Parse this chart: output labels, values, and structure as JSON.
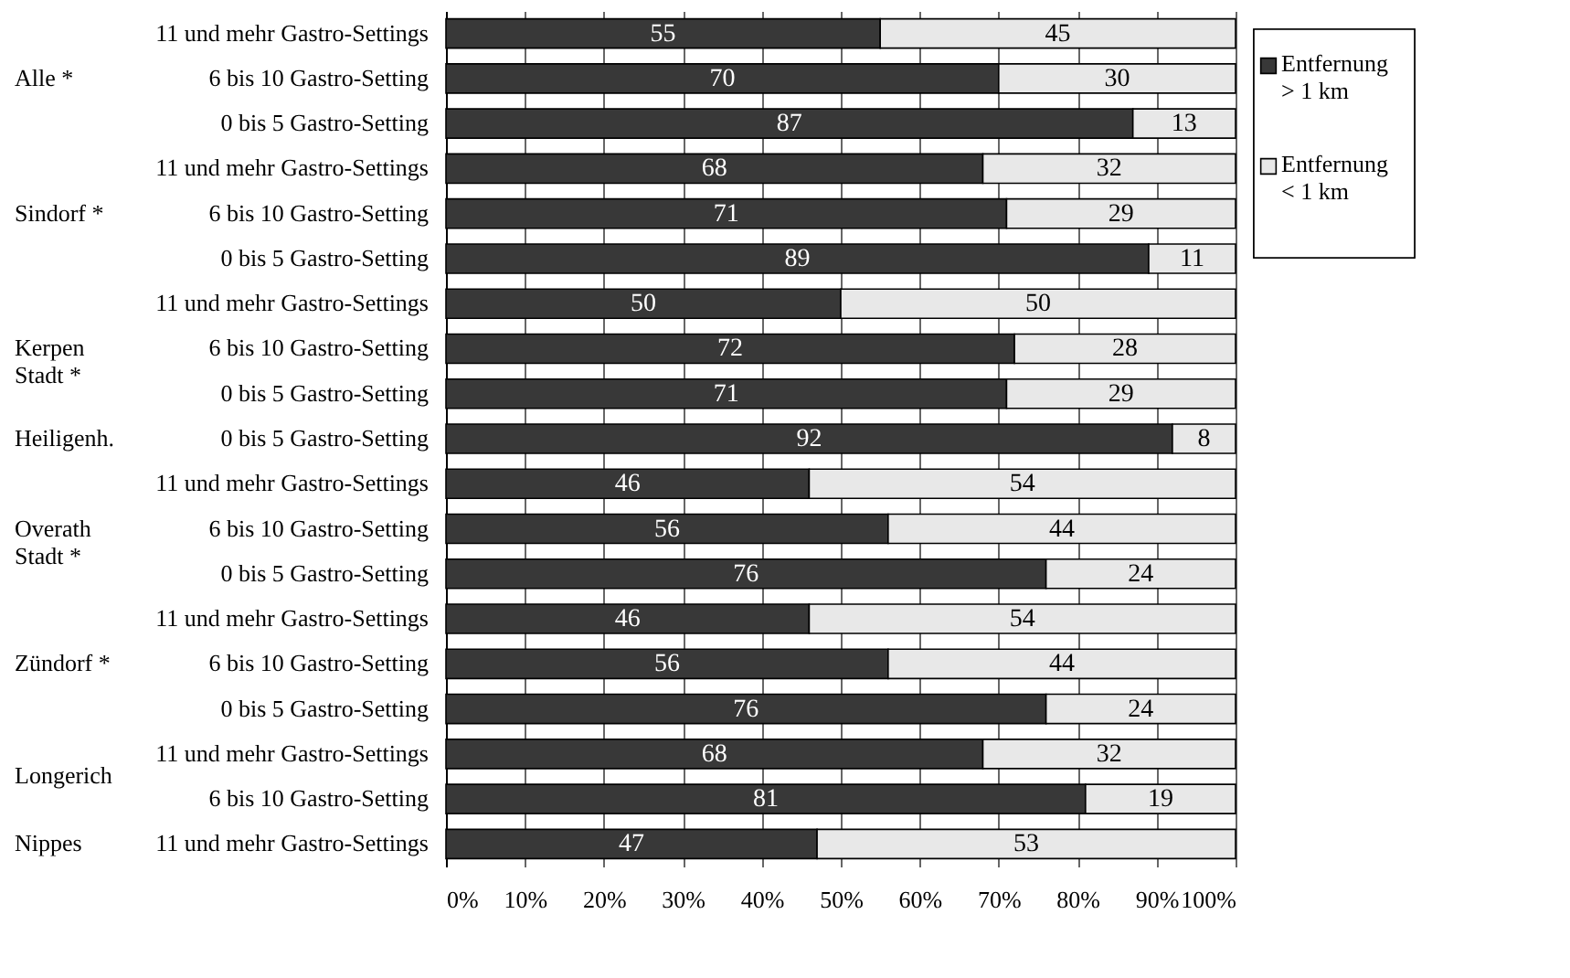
{
  "chart_data": {
    "type": "bar",
    "orientation": "horizontal",
    "stacked": true,
    "data_labels": true,
    "grid": "x",
    "legend": "right",
    "categories": [
      "11 und mehr Gastro-Settings",
      "6 bis 10 Gastro-Setting",
      "0 bis 5 Gastro-Setting",
      "11 und mehr Gastro-Settings",
      "6 bis 10 Gastro-Setting",
      "0 bis 5 Gastro-Setting",
      "11 und mehr Gastro-Settings",
      "6 bis 10 Gastro-Setting",
      "0 bis 5 Gastro-Setting",
      "0 bis 5 Gastro-Setting",
      "11 und mehr Gastro-Settings",
      "6 bis 10 Gastro-Setting",
      "0 bis 5 Gastro-Setting",
      "11 und mehr Gastro-Settings",
      "6 bis 10 Gastro-Setting",
      "0 bis 5 Gastro-Setting",
      "11 und mehr Gastro-Settings",
      "6 bis 10 Gastro-Setting",
      "11 und mehr Gastro-Settings"
    ],
    "series": [
      {
        "name": "Entfernung\n> 1 km",
        "color": "#383838",
        "values": [
          55,
          70,
          87,
          68,
          71,
          89,
          50,
          72,
          71,
          92,
          46,
          56,
          76,
          46,
          56,
          76,
          68,
          81,
          47
        ]
      },
      {
        "name": "Entfernung\n< 1 km",
        "color": "#e8e8e8",
        "values": [
          45,
          30,
          13,
          32,
          29,
          11,
          50,
          28,
          29,
          8,
          54,
          44,
          24,
          54,
          44,
          24,
          32,
          19,
          53
        ]
      }
    ],
    "xlim": [
      0,
      100
    ],
    "xticks": [
      {
        "value": 0,
        "label": "0%"
      },
      {
        "value": 10,
        "label": "10%"
      },
      {
        "value": 20,
        "label": "20%"
      },
      {
        "value": 30,
        "label": "30%"
      },
      {
        "value": 40,
        "label": "40%"
      },
      {
        "value": 50,
        "label": "50%"
      },
      {
        "value": 60,
        "label": "60%"
      },
      {
        "value": 70,
        "label": "70%"
      },
      {
        "value": 80,
        "label": "80%"
      },
      {
        "value": 90,
        "label": "90%"
      },
      {
        "value": 100,
        "label": "100%"
      }
    ],
    "annotations": [
      "Alle *",
      "Sindorf *",
      "Kerpen\nStadt *",
      "Heiligenh.",
      "Overath\nStadt *",
      "Zündorf *",
      "Longerich",
      "Nippes"
    ]
  }
}
